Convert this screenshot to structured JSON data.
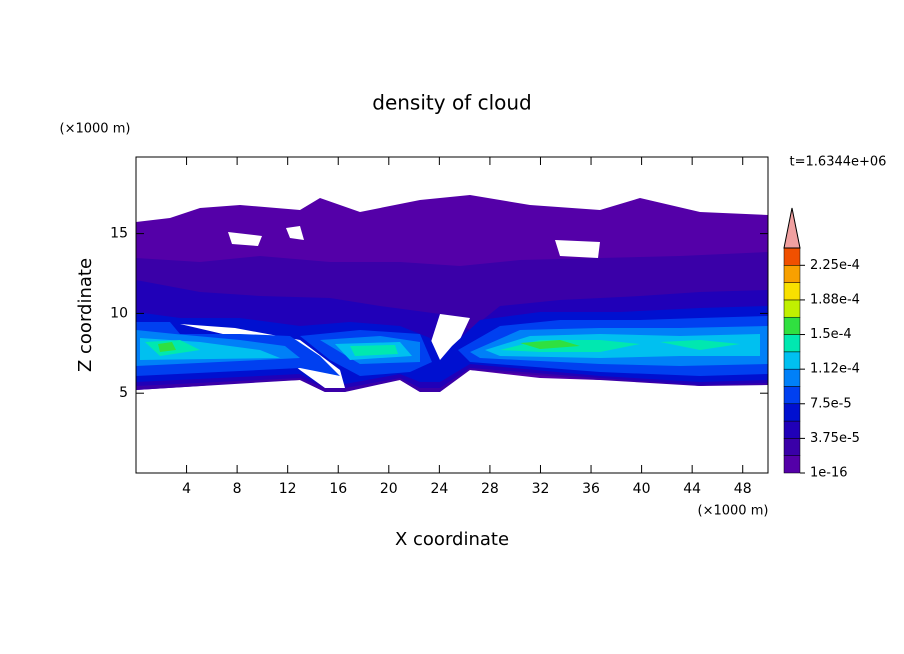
{
  "chart_data": {
    "type": "contour",
    "title": "density of cloud",
    "xlabel": "X coordinate",
    "ylabel": "Z coordinate",
    "x_unit": "(×1000 m)",
    "y_unit": "(×1000 m)",
    "annotation": "t=1.6344e+06",
    "xlim": [
      0,
      50
    ],
    "xticks": [
      4,
      8,
      12,
      16,
      20,
      24,
      28,
      32,
      36,
      40,
      44,
      48
    ],
    "ylim": [
      0,
      19.8
    ],
    "yticks": [
      5,
      10,
      15
    ],
    "colorbar": {
      "clim": [
        1e-16,
        0.00024375
      ],
      "ticks": [
        {
          "value": 1e-16,
          "label": "1e-16"
        },
        {
          "value": 3.75e-05,
          "label": "3.75e-5"
        },
        {
          "value": 7.5e-05,
          "label": "7.5e-5"
        },
        {
          "value": 0.0001125,
          "label": "1.12e-4"
        },
        {
          "value": 0.00015,
          "label": "1.5e-4"
        },
        {
          "value": 0.0001875,
          "label": "1.88e-4"
        },
        {
          "value": 0.000225,
          "label": "2.25e-4"
        }
      ],
      "colors": [
        "#5400a8",
        "#3a00a8",
        "#2000b8",
        "#0010d0",
        "#0040f0",
        "#0080f8",
        "#00c0f0",
        "#00e8b0",
        "#30e040",
        "#c0f000",
        "#f8e000",
        "#f8a000",
        "#f05000"
      ],
      "extend_color": "#f0a0a0"
    }
  }
}
